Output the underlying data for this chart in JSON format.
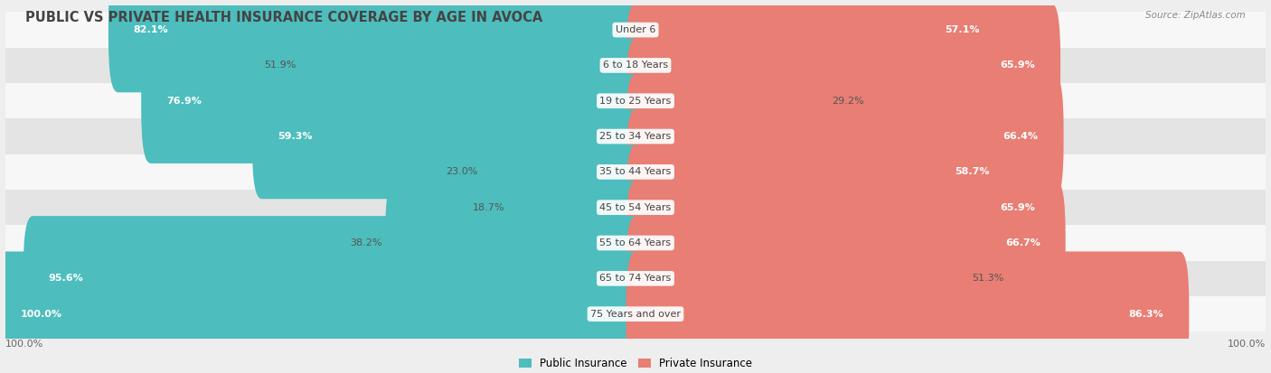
{
  "title": "PUBLIC VS PRIVATE HEALTH INSURANCE COVERAGE BY AGE IN AVOCA",
  "source": "Source: ZipAtlas.com",
  "categories": [
    "Under 6",
    "6 to 18 Years",
    "19 to 25 Years",
    "25 to 34 Years",
    "35 to 44 Years",
    "45 to 54 Years",
    "55 to 64 Years",
    "65 to 74 Years",
    "75 Years and over"
  ],
  "public_values": [
    82.1,
    51.9,
    76.9,
    59.3,
    23.0,
    18.7,
    38.2,
    95.6,
    100.0
  ],
  "private_values": [
    57.1,
    65.9,
    29.2,
    66.4,
    58.7,
    65.9,
    66.7,
    51.3,
    86.3
  ],
  "public_color": "#4dbdbd",
  "private_color": "#e87e74",
  "background_color": "#eeeeee",
  "row_bg_light": "#f7f7f7",
  "row_bg_dark": "#e4e4e4",
  "max_val": 100.0,
  "title_fontsize": 10.5,
  "label_fontsize": 8.0,
  "source_fontsize": 7.5,
  "legend_fontsize": 8.5
}
